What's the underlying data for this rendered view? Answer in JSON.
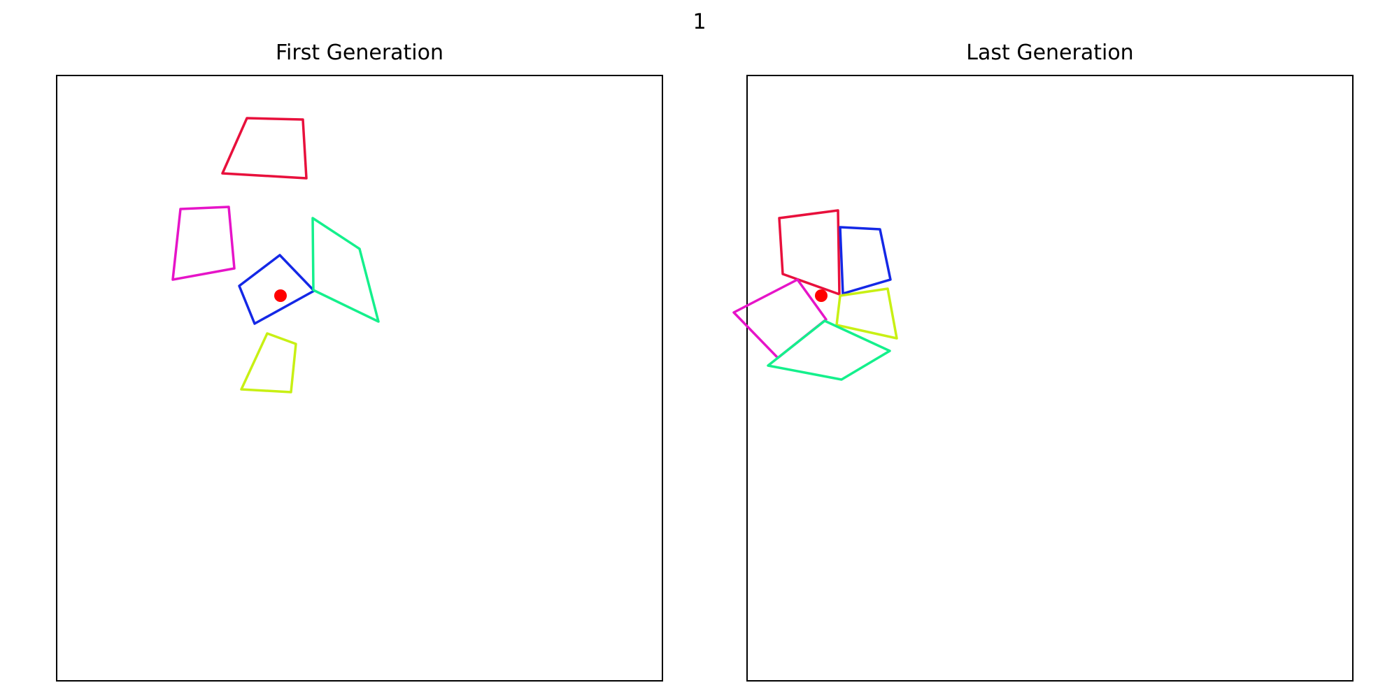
{
  "figure": {
    "title": "1"
  },
  "panels": [
    {
      "title": "First Generation",
      "target": {
        "color": "#ff0000"
      },
      "polygons": [
        {
          "color": "#e8103c",
          "points": [
            [
              353,
              169
            ],
            [
              433,
              171
            ],
            [
              438,
              255
            ],
            [
              318,
              248
            ]
          ]
        },
        {
          "color": "#e614c8",
          "points": [
            [
              258,
              299
            ],
            [
              327,
              296
            ],
            [
              335,
              384
            ],
            [
              247,
              400
            ]
          ]
        },
        {
          "color": "#1428e6",
          "points": [
            [
              400,
              365
            ],
            [
              449,
              416
            ],
            [
              364,
              463
            ],
            [
              342,
              409
            ]
          ]
        },
        {
          "color": "#14f08c",
          "points": [
            [
              447,
              312
            ],
            [
              514,
              356
            ],
            [
              541,
              460
            ],
            [
              448,
              415
            ]
          ]
        },
        {
          "color": "#c8f014",
          "points": [
            [
              382,
              477
            ],
            [
              423,
              492
            ],
            [
              416,
              561
            ],
            [
              345,
              557
            ]
          ]
        }
      ],
      "target_point": [
        401,
        423
      ]
    },
    {
      "title": "Last Generation",
      "target": {
        "color": "#ff0000"
      },
      "polygons": [
        {
          "color": "#e8103c",
          "points": [
            [
              1114,
              312
            ],
            [
              1198,
              301
            ],
            [
              1200,
              421
            ],
            [
              1119,
              392
            ]
          ]
        },
        {
          "color": "#1428e6",
          "points": [
            [
              1201,
              325
            ],
            [
              1258,
              328
            ],
            [
              1273,
              400
            ],
            [
              1205,
              420
            ]
          ]
        },
        {
          "color": "#c8f014",
          "points": [
            [
              1201,
              423
            ],
            [
              1269,
              413
            ],
            [
              1282,
              484
            ],
            [
              1196,
              465
            ]
          ]
        },
        {
          "color": "#e614c8",
          "points": [
            [
              1140,
              400
            ],
            [
              1181,
              457
            ],
            [
              1112,
              512
            ],
            [
              1049,
              447
            ]
          ]
        },
        {
          "color": "#14f08c",
          "points": [
            [
              1179,
              459
            ],
            [
              1272,
              502
            ],
            [
              1203,
              543
            ],
            [
              1098,
              523
            ]
          ]
        }
      ],
      "target_point": [
        1174,
        423
      ]
    }
  ]
}
